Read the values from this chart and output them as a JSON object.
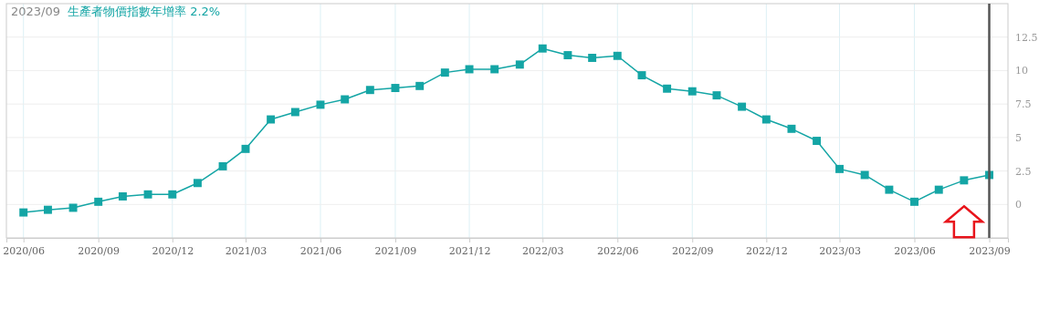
{
  "chart_data": {
    "type": "line",
    "title": "2023/09",
    "subtitle": "生產者物價指數年增率 2.2%",
    "x": [
      "2020-06",
      "2020-07",
      "2020-08",
      "2020-09",
      "2020-10",
      "2020-11",
      "2020-12",
      "2021-01",
      "2021-02",
      "2021-03",
      "2021-04",
      "2021-05",
      "2021-06",
      "2021-07",
      "2021-08",
      "2021-09",
      "2021-10",
      "2021-11",
      "2021-12",
      "2022-01",
      "2022-02",
      "2022-03",
      "2022-04",
      "2022-05",
      "2022-06",
      "2022-07",
      "2022-08",
      "2022-09",
      "2022-10",
      "2022-11",
      "2022-12",
      "2023-01",
      "2023-02",
      "2023-03",
      "2023-04",
      "2023-05",
      "2023-06",
      "2023-07",
      "2023-08",
      "2023-09"
    ],
    "series": [
      {
        "color": "#14a5a5",
        "values": [
          -0.6,
          -0.4,
          -0.25,
          0.2,
          0.6,
          0.75,
          0.75,
          1.6,
          2.85,
          4.15,
          6.35,
          6.9,
          7.45,
          7.85,
          8.55,
          8.7,
          8.85,
          9.85,
          10.1,
          10.1,
          10.45,
          11.65,
          11.15,
          10.95,
          11.1,
          9.65,
          8.65,
          8.45,
          8.15,
          7.3,
          6.35,
          5.65,
          4.75,
          2.65,
          2.2,
          1.1,
          0.2,
          1.1,
          1.8,
          2.2
        ]
      }
    ],
    "xlim": [
      "2020-05-11",
      "2023-09-24"
    ],
    "xticks": [
      {
        "value": "2020-06",
        "label": "2020/06"
      },
      {
        "value": "2020-09",
        "label": "2020/09"
      },
      {
        "value": "2020-12",
        "label": "2020/12"
      },
      {
        "value": "2021-03",
        "label": "2021/03"
      },
      {
        "value": "2021-06",
        "label": "2021/06"
      },
      {
        "value": "2021-09",
        "label": "2021/09"
      },
      {
        "value": "2021-12",
        "label": "2021/12"
      },
      {
        "value": "2022-03",
        "label": "2022/03"
      },
      {
        "value": "2022-06",
        "label": "2022/06"
      },
      {
        "value": "2022-09",
        "label": "2022/09"
      },
      {
        "value": "2022-12",
        "label": "2022/12"
      },
      {
        "value": "2023-03",
        "label": "2023/03"
      },
      {
        "value": "2023-06",
        "label": "2023/06"
      },
      {
        "value": "2023-09",
        "label": "2023/09"
      }
    ],
    "ylim": [
      -2.5,
      15
    ],
    "yticks": [
      0,
      2.5,
      5,
      7.5,
      10,
      12.5
    ],
    "grid": true,
    "marker": "square",
    "line_style": "solid",
    "ref_lines": [
      {
        "axis": "x",
        "value": "2023-09",
        "color": "#555555"
      }
    ]
  }
}
